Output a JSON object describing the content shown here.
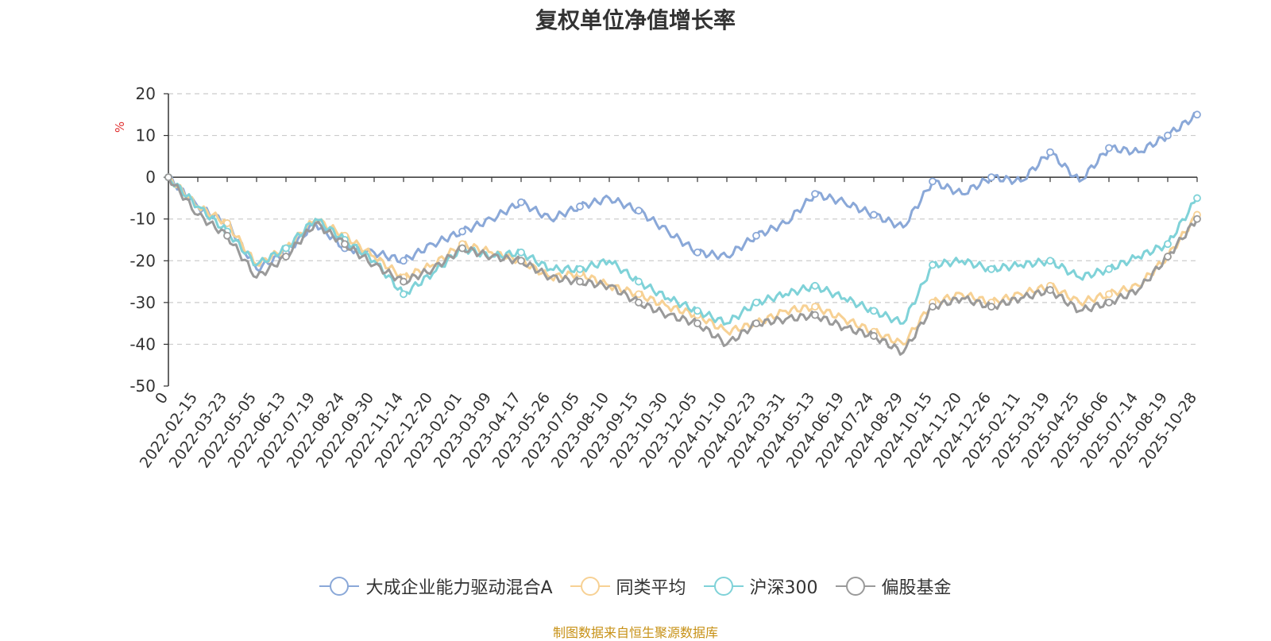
{
  "chart_data": {
    "type": "line",
    "title": "复权单位净值增长率",
    "ylabel": "%",
    "ylim": [
      -50,
      20
    ],
    "yticks": [
      20,
      10,
      0,
      -10,
      -20,
      -30,
      -40,
      -50
    ],
    "grid": true,
    "legend_position": "bottom",
    "categories": [
      "0",
      "2022-02-15",
      "2022-03-23",
      "2022-05-05",
      "2022-06-13",
      "2022-07-19",
      "2022-08-24",
      "2022-09-30",
      "2022-11-14",
      "2022-12-20",
      "2023-02-01",
      "2023-03-09",
      "2023-04-17",
      "2023-05-26",
      "2023-07-05",
      "2023-08-10",
      "2023-09-15",
      "2023-10-30",
      "2023-12-05",
      "2024-01-10",
      "2024-02-23",
      "2024-03-31",
      "2024-05-13",
      "2024-06-19",
      "2024-07-24",
      "2024-08-29",
      "2024-10-15",
      "2024-11-20",
      "2024-12-26",
      "2025-02-11",
      "2025-03-19",
      "2025-04-25",
      "2025-06-06",
      "2025-07-14",
      "2025-08-19",
      "2025-10-28"
    ],
    "series": [
      {
        "name": "大成企业能力驱动混合A",
        "color": "#8aa8d8",
        "values": [
          0,
          -7,
          -11,
          -22,
          -18,
          -11,
          -17,
          -18,
          -20,
          -16,
          -13,
          -10,
          -6,
          -10,
          -7,
          -5,
          -8,
          -13,
          -18,
          -19,
          -14,
          -11,
          -4,
          -6,
          -9,
          -12,
          -1,
          -4,
          0,
          -1,
          6,
          -1,
          7,
          6,
          10,
          15
        ]
      },
      {
        "name": "同类平均",
        "color": "#f7d194",
        "values": [
          0,
          -7,
          -11,
          -21,
          -17,
          -10,
          -14,
          -19,
          -24,
          -21,
          -16,
          -18,
          -20,
          -24,
          -23,
          -26,
          -28,
          -31,
          -33,
          -37,
          -35,
          -32,
          -31,
          -34,
          -37,
          -40,
          -30,
          -28,
          -30,
          -28,
          -26,
          -30,
          -28,
          -26,
          -19,
          -9
        ]
      },
      {
        "name": "沪深300",
        "color": "#7fd2d8",
        "values": [
          0,
          -7,
          -13,
          -21,
          -17,
          -10,
          -15,
          -20,
          -28,
          -23,
          -17,
          -19,
          -18,
          -22,
          -22,
          -20,
          -25,
          -29,
          -32,
          -35,
          -30,
          -28,
          -26,
          -29,
          -32,
          -35,
          -21,
          -20,
          -22,
          -21,
          -20,
          -24,
          -22,
          -19,
          -16,
          -5
        ]
      },
      {
        "name": "偏股基金",
        "color": "#9a9a9a",
        "values": [
          0,
          -9,
          -14,
          -24,
          -19,
          -11,
          -16,
          -21,
          -25,
          -22,
          -17,
          -19,
          -20,
          -24,
          -25,
          -26,
          -30,
          -33,
          -35,
          -40,
          -35,
          -34,
          -33,
          -36,
          -38,
          -42,
          -31,
          -29,
          -31,
          -29,
          -27,
          -32,
          -30,
          -27,
          -19,
          -10
        ]
      }
    ],
    "source_note": "制图数据来自恒生聚源数据库"
  }
}
